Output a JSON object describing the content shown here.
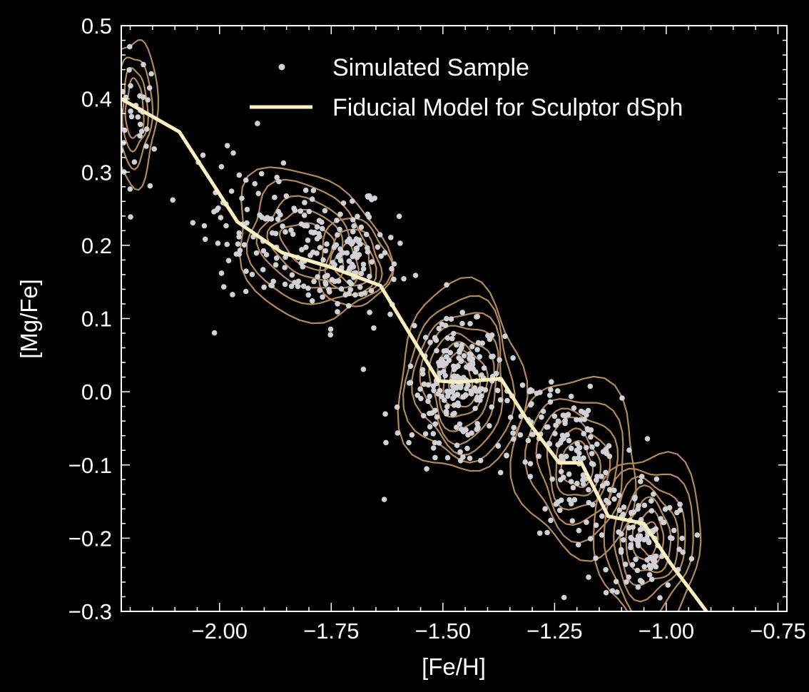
{
  "chart_data": {
    "type": "scatter",
    "title": "",
    "xlabel": "[Fe/H]",
    "ylabel": "[Mg/Fe]",
    "xlim": [
      -2.22,
      -0.73
    ],
    "ylim": [
      -0.3,
      0.5
    ],
    "x_ticks": [
      -2.0,
      -1.75,
      -1.5,
      -1.25,
      -1.0,
      -0.75
    ],
    "x_tick_labels": [
      "−2.00",
      "−1.75",
      "−1.50",
      "−1.25",
      "−1.00",
      "−0.75"
    ],
    "y_ticks": [
      -0.3,
      -0.2,
      -0.1,
      0.0,
      0.1,
      0.2,
      0.3,
      0.4,
      0.5
    ],
    "y_tick_labels": [
      "−0.3",
      "−0.2",
      "−0.1",
      "0.0",
      "0.1",
      "0.2",
      "0.3",
      "0.4",
      "0.5"
    ],
    "grid": false,
    "legend_position": "top-right",
    "legend": [
      "Simulated Sample",
      "Fiducial Model for Sculptor dSph"
    ],
    "colors": {
      "background": "#000000",
      "points": "#d2d2d6",
      "model_line": "#fff0c2",
      "contours": "#b08a5c",
      "frame": "#ffffff"
    },
    "series": [
      {
        "name": "Fiducial Model for Sculptor dSph",
        "kind": "line",
        "x": [
          -2.22,
          -2.09,
          -1.96,
          -1.86,
          -1.75,
          -1.64,
          -1.51,
          -1.47,
          -1.37,
          -1.31,
          -1.24,
          -1.19,
          -1.13,
          -1.05,
          -0.99,
          -0.91
        ],
        "y": [
          0.4,
          0.355,
          0.232,
          0.19,
          0.17,
          0.145,
          0.015,
          0.013,
          0.018,
          -0.04,
          -0.097,
          -0.097,
          -0.17,
          -0.18,
          -0.235,
          -0.3
        ]
      },
      {
        "name": "Simulated Sample",
        "kind": "scatter",
        "clusters": [
          {
            "center": [
              -2.19,
              0.37
            ],
            "spread": [
              0.03,
              0.05
            ],
            "count": 40
          },
          {
            "center": [
              -1.8,
              0.2
            ],
            "spread": [
              0.09,
              0.045
            ],
            "count": 130
          },
          {
            "center": [
              -1.7,
              0.17
            ],
            "spread": [
              0.05,
              0.04
            ],
            "count": 70
          },
          {
            "center": [
              -1.96,
              0.25
            ],
            "spread": [
              0.05,
              0.05
            ],
            "count": 40
          },
          {
            "center": [
              -1.47,
              0.015
            ],
            "spread": [
              0.05,
              0.04
            ],
            "count": 150
          },
          {
            "center": [
              -1.45,
              -0.02
            ],
            "spread": [
              0.08,
              0.05
            ],
            "count": 60
          },
          {
            "center": [
              -1.2,
              -0.1
            ],
            "spread": [
              0.05,
              0.045
            ],
            "count": 110
          },
          {
            "center": [
              -1.05,
              -0.2
            ],
            "spread": [
              0.05,
              0.045
            ],
            "count": 110
          },
          {
            "center": [
              -1.3,
              -0.03
            ],
            "spread": [
              0.04,
              0.03
            ],
            "count": 35
          }
        ]
      }
    ],
    "contour_blobs": [
      {
        "center": [
          -2.19,
          0.385
        ],
        "rx": [
          0.05,
          0.037,
          0.028,
          0.02
        ],
        "ry": [
          0.1,
          0.075,
          0.055,
          0.04
        ],
        "tilt": 0
      },
      {
        "center": [
          -1.8,
          0.2
        ],
        "rx": [
          0.17,
          0.14,
          0.11,
          0.085,
          0.06
        ],
        "ry": [
          0.1,
          0.08,
          0.06,
          0.045,
          0.03
        ],
        "tilt": -0.2
      },
      {
        "center": [
          -1.7,
          0.175
        ],
        "rx": [
          0.08,
          0.06,
          0.04
        ],
        "ry": [
          0.06,
          0.045,
          0.03
        ],
        "tilt": -0.1
      },
      {
        "center": [
          -1.46,
          0.015
        ],
        "rx": [
          0.14,
          0.12,
          0.1,
          0.085,
          0.07,
          0.055,
          0.04,
          0.025
        ],
        "ry": [
          0.13,
          0.11,
          0.095,
          0.08,
          0.065,
          0.05,
          0.038,
          0.025
        ],
        "tilt": 0
      },
      {
        "center": [
          -1.2,
          -0.1
        ],
        "rx": [
          0.14,
          0.11,
          0.09,
          0.07,
          0.05,
          0.035
        ],
        "ry": [
          0.12,
          0.095,
          0.075,
          0.06,
          0.045,
          0.03
        ],
        "tilt": -0.3
      },
      {
        "center": [
          -1.04,
          -0.2
        ],
        "rx": [
          0.12,
          0.1,
          0.08,
          0.065,
          0.05,
          0.035,
          0.022
        ],
        "ry": [
          0.12,
          0.1,
          0.08,
          0.065,
          0.05,
          0.035,
          0.022
        ],
        "tilt": -0.2
      }
    ]
  }
}
